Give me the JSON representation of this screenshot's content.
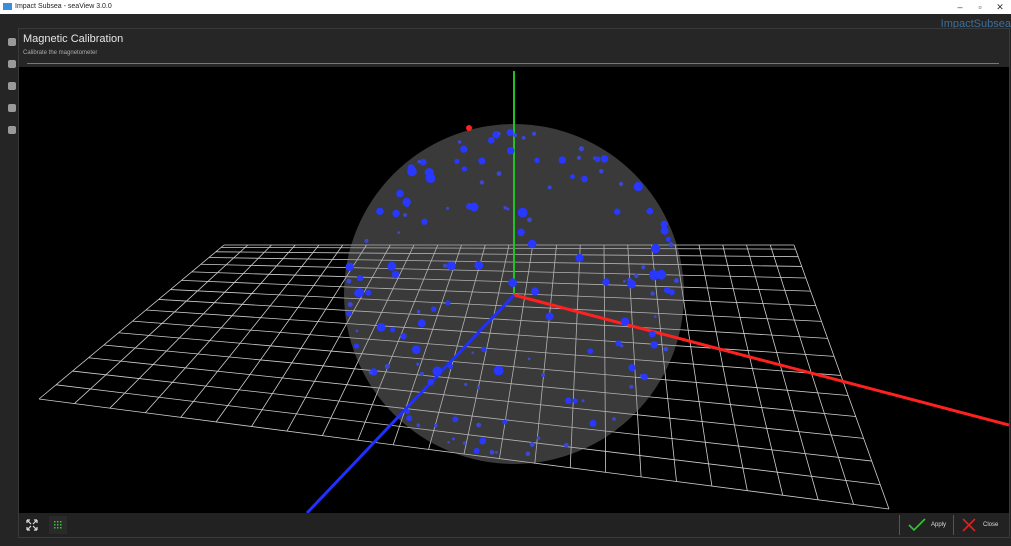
{
  "window": {
    "title": "Impact Subsea - seaView 3.0.0",
    "min": "–",
    "max": "▫",
    "close": "✕"
  },
  "background": {
    "brand_text": "ImpactSubsea"
  },
  "dialog": {
    "title": "Magnetic Calibration",
    "subtitle": "Calibrate the magnetometer",
    "apply_label": "Apply",
    "close_label": "Close"
  },
  "colors": {
    "x_axis": "#ff2020",
    "y_axis": "#22c022",
    "z_axis": "#2030ff",
    "points": "#2838ff",
    "grid": "#d8d8d8",
    "sphere": "#8a8a8a"
  },
  "icons": {
    "expand": "expand-icon",
    "grid_toggle": "grid-toggle-icon",
    "apply": "checkmark-icon",
    "close": "x-icon"
  }
}
